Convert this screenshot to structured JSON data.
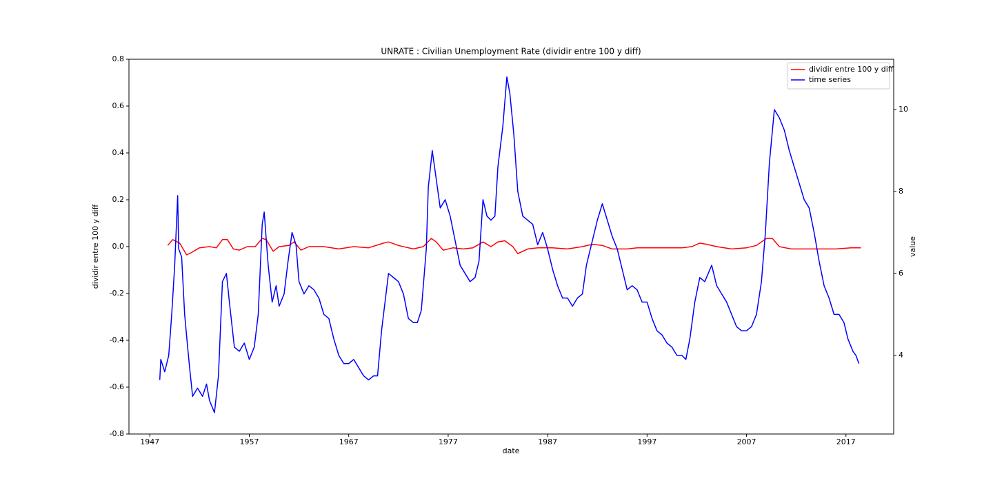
{
  "chart_data": {
    "type": "line",
    "title": "UNRATE :  Civilian Unemployment Rate (dividir entre 100 y diff)",
    "x_label": "date",
    "y_label": "dividir entre 100 y diff",
    "y2_label": "value",
    "xlim": [
      1944.9,
      2021.8
    ],
    "ylim": [
      -0.8,
      0.8
    ],
    "y2lim": [
      2.08,
      11.23
    ],
    "xticks": [
      1947,
      1957,
      1967,
      1977,
      1987,
      1997,
      2007,
      2017
    ],
    "yticks": [
      -0.8,
      -0.6,
      -0.4,
      -0.2,
      {
        "value": 0,
        "label": "0.0"
      },
      0.2,
      0.4,
      0.6,
      0.8
    ],
    "y2ticks": [
      4,
      6,
      8,
      10
    ],
    "legend": "upper right",
    "series": [
      {
        "name": "dividir entre 100 y diff",
        "color": "#ff0000",
        "axis": "y",
        "x": [
          1948.8,
          1949.3,
          1950.0,
          1950.7,
          1951.2,
          1952.0,
          1953.0,
          1953.7,
          1954.3,
          1954.8,
          1955.4,
          1956.0,
          1956.8,
          1957.6,
          1958.3,
          1958.7,
          1959.4,
          1960.0,
          1961.0,
          1961.5,
          1962.2,
          1963.0,
          1964.5,
          1966.0,
          1967.5,
          1969.0,
          1970.5,
          1971.0,
          1972.0,
          1973.5,
          1974.5,
          1975.3,
          1975.8,
          1976.5,
          1977.5,
          1978.5,
          1979.5,
          1980.5,
          1981.3,
          1982.0,
          1982.7,
          1983.5,
          1984.0,
          1985.0,
          1986.0,
          1987.5,
          1989.0,
          1990.5,
          1991.5,
          1992.5,
          1993.5,
          1995.0,
          1996.0,
          1997.5,
          1999.0,
          2000.5,
          2001.5,
          2002.3,
          2003.0,
          2004.0,
          2005.5,
          2007.0,
          2008.0,
          2009.0,
          2009.6,
          2010.3,
          2011.5,
          2013.0,
          2014.5,
          2016.0,
          2017.5,
          2018.5
        ],
        "values": [
          0.005,
          0.03,
          0.015,
          -0.035,
          -0.025,
          -0.005,
          0.0,
          -0.005,
          0.03,
          0.03,
          -0.01,
          -0.015,
          0.0,
          0.0,
          0.035,
          0.03,
          -0.02,
          0.0,
          0.005,
          0.02,
          -0.015,
          0.0,
          0.0,
          -0.01,
          0.0,
          -0.005,
          0.015,
          0.02,
          0.005,
          -0.01,
          0.0,
          0.035,
          0.02,
          -0.015,
          -0.005,
          -0.01,
          -0.005,
          0.02,
          0.0,
          0.02,
          0.025,
          0.0,
          -0.03,
          -0.01,
          -0.005,
          -0.005,
          -0.01,
          0.0,
          0.01,
          0.005,
          -0.01,
          -0.01,
          -0.005,
          -0.005,
          -0.005,
          -0.005,
          0.0,
          0.015,
          0.01,
          0.0,
          -0.01,
          -0.005,
          0.005,
          0.035,
          0.035,
          0.0,
          -0.01,
          -0.01,
          -0.01,
          -0.01,
          -0.005,
          -0.005
        ]
      },
      {
        "name": "time series",
        "color": "#0000ff",
        "axis": "y2",
        "x": [
          1948.0,
          1948.1,
          1948.5,
          1948.9,
          1949.2,
          1949.5,
          1949.8,
          1949.9,
          1950.2,
          1950.5,
          1950.8,
          1951.0,
          1951.3,
          1951.8,
          1952.3,
          1952.7,
          1953.0,
          1953.5,
          1953.9,
          1954.3,
          1954.7,
          1955.0,
          1955.5,
          1956.0,
          1956.5,
          1957.0,
          1957.5,
          1957.9,
          1958.3,
          1958.5,
          1958.9,
          1959.3,
          1959.7,
          1960.0,
          1960.5,
          1960.9,
          1961.3,
          1961.7,
          1962.0,
          1962.5,
          1963.0,
          1963.5,
          1964.0,
          1964.5,
          1965.0,
          1965.5,
          1966.0,
          1966.5,
          1967.0,
          1967.5,
          1968.0,
          1968.5,
          1969.0,
          1969.5,
          1969.9,
          1970.3,
          1970.8,
          1971.0,
          1971.5,
          1972.0,
          1972.5,
          1973.0,
          1973.5,
          1973.9,
          1974.3,
          1974.8,
          1975.0,
          1975.4,
          1975.8,
          1976.2,
          1976.7,
          1977.2,
          1977.7,
          1978.2,
          1978.7,
          1979.2,
          1979.7,
          1980.1,
          1980.5,
          1980.9,
          1981.3,
          1981.7,
          1982.0,
          1982.5,
          1982.9,
          1983.2,
          1983.6,
          1984.0,
          1984.5,
          1985.0,
          1985.5,
          1986.0,
          1986.5,
          1987.0,
          1987.5,
          1988.0,
          1988.5,
          1989.0,
          1989.5,
          1990.0,
          1990.5,
          1990.9,
          1991.5,
          1992.0,
          1992.5,
          1993.0,
          1993.5,
          1994.0,
          1994.5,
          1995.0,
          1995.5,
          1996.0,
          1996.5,
          1997.0,
          1997.5,
          1998.0,
          1998.5,
          1999.0,
          1999.5,
          2000.0,
          2000.5,
          2000.9,
          2001.3,
          2001.8,
          2002.3,
          2002.8,
          2003.5,
          2004.0,
          2004.5,
          2005.0,
          2005.5,
          2006.0,
          2006.5,
          2007.0,
          2007.5,
          2008.0,
          2008.5,
          2008.9,
          2009.3,
          2009.8,
          2010.3,
          2010.8,
          2011.3,
          2011.8,
          2012.3,
          2012.8,
          2013.3,
          2013.8,
          2014.3,
          2014.8,
          2015.3,
          2015.8,
          2016.3,
          2016.8,
          2017.2,
          2017.7,
          2018.0,
          2018.3
        ],
        "values": [
          3.4,
          3.9,
          3.6,
          4.0,
          5.0,
          6.2,
          7.9,
          6.6,
          6.4,
          5.0,
          4.2,
          3.7,
          3.0,
          3.2,
          3.0,
          3.3,
          2.9,
          2.6,
          3.5,
          5.8,
          6.0,
          5.3,
          4.2,
          4.1,
          4.3,
          3.9,
          4.2,
          5.0,
          7.2,
          7.5,
          6.2,
          5.3,
          5.7,
          5.2,
          5.5,
          6.3,
          7.0,
          6.7,
          5.8,
          5.5,
          5.7,
          5.6,
          5.4,
          5.0,
          4.9,
          4.4,
          4.0,
          3.8,
          3.8,
          3.9,
          3.7,
          3.5,
          3.4,
          3.5,
          3.5,
          4.6,
          5.6,
          6.0,
          5.9,
          5.8,
          5.5,
          4.9,
          4.8,
          4.8,
          5.1,
          6.6,
          8.1,
          9.0,
          8.3,
          7.6,
          7.8,
          7.4,
          6.8,
          6.2,
          6.0,
          5.8,
          5.9,
          6.3,
          7.8,
          7.4,
          7.3,
          7.4,
          8.6,
          9.6,
          10.8,
          10.4,
          9.4,
          8.0,
          7.4,
          7.3,
          7.2,
          6.7,
          7.0,
          6.6,
          6.1,
          5.7,
          5.4,
          5.4,
          5.2,
          5.4,
          5.5,
          6.2,
          6.8,
          7.3,
          7.7,
          7.3,
          6.9,
          6.6,
          6.1,
          5.6,
          5.7,
          5.6,
          5.3,
          5.3,
          4.9,
          4.6,
          4.5,
          4.3,
          4.2,
          4.0,
          4.0,
          3.9,
          4.4,
          5.3,
          5.9,
          5.8,
          6.2,
          5.7,
          5.5,
          5.3,
          5.0,
          4.7,
          4.6,
          4.6,
          4.7,
          5.0,
          5.8,
          7.0,
          8.7,
          10.0,
          9.8,
          9.5,
          9.0,
          8.6,
          8.2,
          7.8,
          7.6,
          7.0,
          6.3,
          5.7,
          5.4,
          5.0,
          5.0,
          4.8,
          4.4,
          4.1,
          4.0,
          3.8
        ]
      }
    ]
  }
}
